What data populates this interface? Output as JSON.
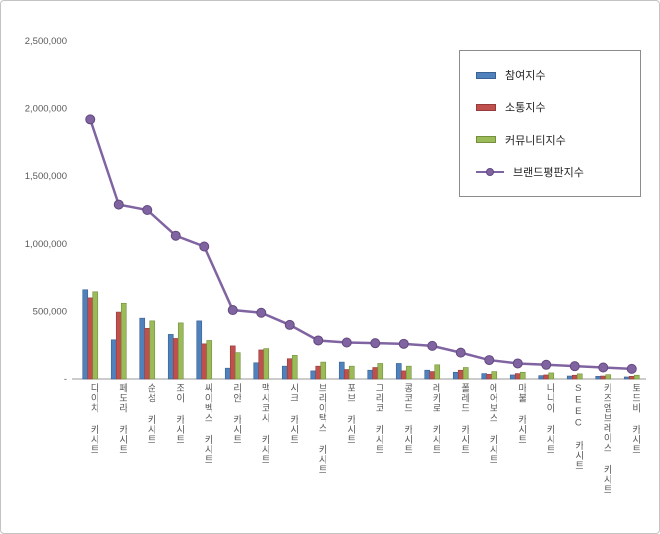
{
  "chart_data": {
    "type": "bar",
    "title": "",
    "xlabel": "",
    "ylabel": "",
    "grid": false,
    "legend_position": "top-right",
    "ylim": [
      0,
      2500000
    ],
    "yticks": [
      {
        "value": 2500000,
        "label": "2,500,000"
      },
      {
        "value": 2000000,
        "label": "2,000,000"
      },
      {
        "value": 1500000,
        "label": "1,500,000"
      },
      {
        "value": 1000000,
        "label": "1,000,000"
      },
      {
        "value": 500000,
        "label": "500,000"
      },
      {
        "value": 0,
        "label": "-"
      }
    ],
    "categories": [
      "다이치 카시트",
      "페도라 카시트",
      "순성 카시트",
      "조이 카시트",
      "싸이벡스 카시트",
      "리안 카시트",
      "맥시코시 카시트",
      "시크 카시트",
      "브라이택스 카시트",
      "포브 카시트",
      "그라코 카시트",
      "콩코드 카시트",
      "레카로 카시트",
      "폴레드 카시트",
      "에어보스 카시트",
      "마불 카시트",
      "나니아 카시트",
      "SEEC 카시트",
      "키즈엠브레이스 카시트",
      "토드비 카시트"
    ],
    "series": [
      {
        "name": "참여지수",
        "type": "bar",
        "color": "#4F81BD",
        "edge": "#3A6191",
        "values": [
          660000,
          290000,
          450000,
          330000,
          430000,
          80000,
          120000,
          95000,
          60000,
          125000,
          65000,
          115000,
          65000,
          50000,
          40000,
          30000,
          25000,
          22000,
          20000,
          15000
        ]
      },
      {
        "name": "소통지수",
        "type": "bar",
        "color": "#C0504D",
        "edge": "#953C3A",
        "values": [
          600000,
          495000,
          375000,
          300000,
          260000,
          245000,
          215000,
          150000,
          95000,
          70000,
          85000,
          60000,
          55000,
          65000,
          35000,
          40000,
          30000,
          28000,
          22000,
          20000
        ]
      },
      {
        "name": "커뮤니티지수",
        "type": "bar",
        "color": "#9BBB59",
        "edge": "#748F3F",
        "values": [
          645000,
          560000,
          430000,
          415000,
          285000,
          195000,
          225000,
          175000,
          125000,
          95000,
          115000,
          95000,
          105000,
          85000,
          55000,
          50000,
          45000,
          38000,
          32000,
          28000
        ]
      },
      {
        "name": "브랜드평판지수",
        "type": "line",
        "color": "#8064A2",
        "edge": "#63487E",
        "values": [
          1920000,
          1290000,
          1250000,
          1060000,
          980000,
          510000,
          490000,
          400000,
          285000,
          270000,
          265000,
          260000,
          245000,
          195000,
          140000,
          115000,
          105000,
          95000,
          85000,
          75000
        ]
      }
    ]
  }
}
